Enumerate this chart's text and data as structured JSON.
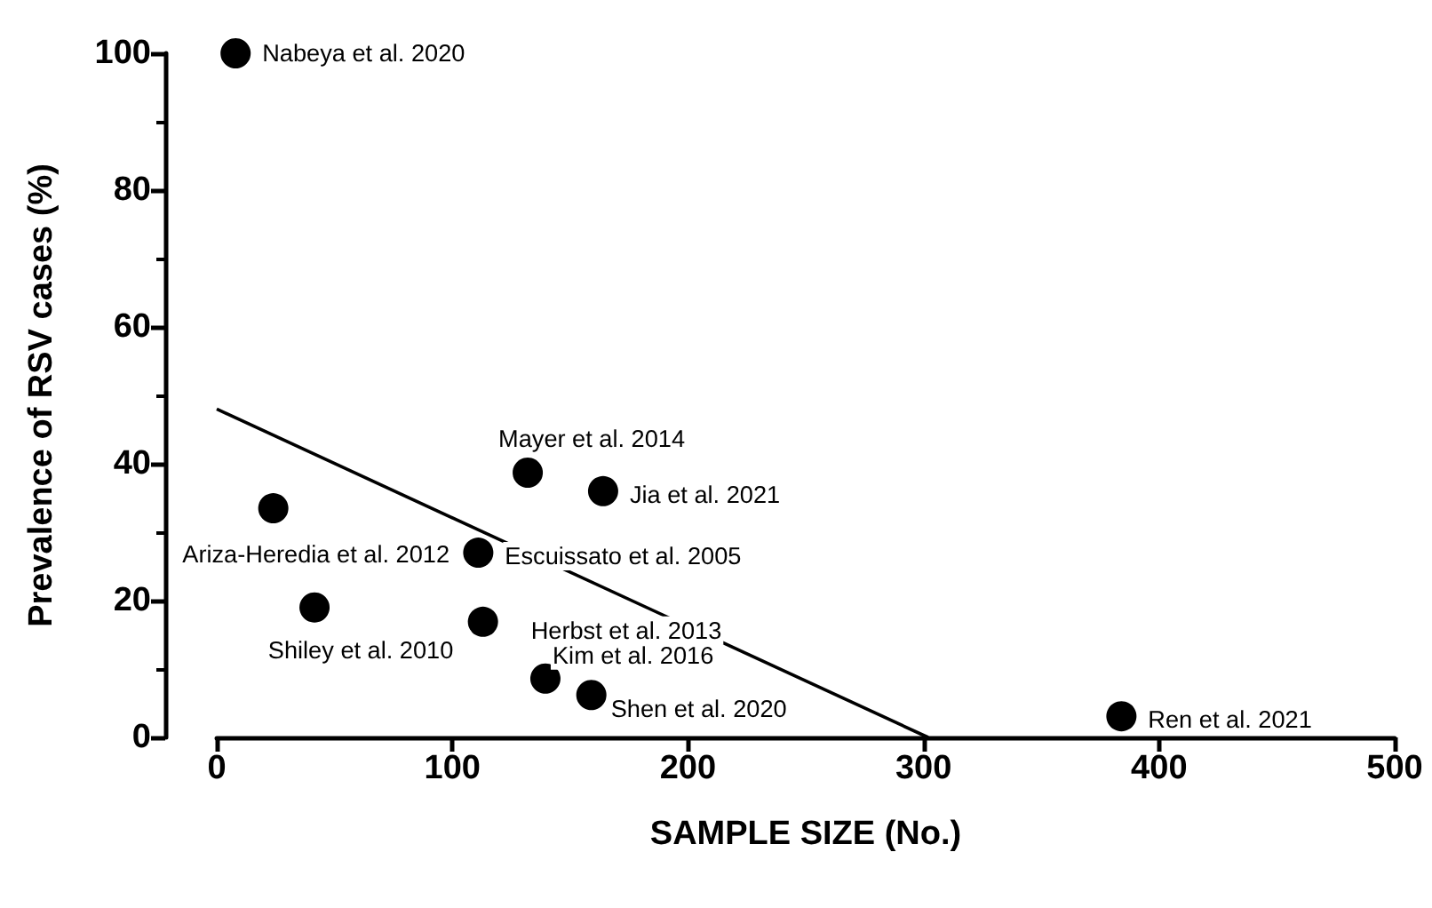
{
  "chart_data": {
    "type": "scatter",
    "xlabel": "SAMPLE SIZE (No.)",
    "ylabel": "Prevalence of RSV cases (%)",
    "xlim": [
      0,
      500
    ],
    "xticks": [
      0,
      100,
      200,
      300,
      400,
      500
    ],
    "ylim": [
      0,
      100
    ],
    "yticks": [
      0,
      20,
      40,
      60,
      80,
      100
    ],
    "grid": false,
    "marker": "circle",
    "series": [
      {
        "type": "scatter",
        "color": "#000000",
        "x": [
          8,
          24,
          41.5,
          111,
          113,
          132,
          164,
          139.5,
          159,
          384
        ],
        "values": [
          100,
          33.5,
          19,
          27,
          16.9,
          38.7,
          36,
          8.6,
          6.2,
          3.1
        ]
      },
      {
        "type": "line",
        "color": "#000000",
        "marker": "none",
        "line_style": "solid",
        "x": [
          0,
          302
        ],
        "values": [
          48,
          0
        ]
      }
    ],
    "annotations": [
      {
        "text": "Nabeya et al. 2020",
        "x": 8,
        "y": 100
      },
      {
        "text": "Ariza-Heredia et al. 2012",
        "x": 24,
        "y": 33.5
      },
      {
        "text": "Shiley et al. 2010",
        "x": 41.5,
        "y": 19
      },
      {
        "text": "Escuissato et al. 2005",
        "x": 111,
        "y": 27
      },
      {
        "text": "Herbst et al. 2013",
        "x": 113,
        "y": 16.9
      },
      {
        "text": "Mayer et al. 2014",
        "x": 132,
        "y": 38.7
      },
      {
        "text": "Jia et al. 2021",
        "x": 164,
        "y": 36
      },
      {
        "text": "Kim et al. 2016",
        "x": 139.5,
        "y": 8.6
      },
      {
        "text": "Shen et al. 2020",
        "x": 159,
        "y": 6.2
      },
      {
        "text": "Ren et al. 2021",
        "x": 384,
        "y": 3.1
      }
    ]
  }
}
